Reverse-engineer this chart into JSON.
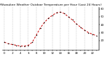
{
  "title": "Milwaukee Weather Outdoor Temperature per Hour (Last 24 Hours)",
  "hours": [
    0,
    1,
    2,
    3,
    4,
    5,
    6,
    7,
    8,
    9,
    10,
    11,
    12,
    13,
    14,
    15,
    16,
    17,
    18,
    19,
    20,
    21,
    22,
    23
  ],
  "temps": [
    18,
    16,
    15,
    14,
    13,
    13,
    14,
    18,
    27,
    36,
    43,
    48,
    52,
    55,
    56,
    54,
    50,
    46,
    41,
    37,
    33,
    30,
    28,
    26
  ],
  "line_color": "#cc0000",
  "marker_color": "#000000",
  "bg_color": "#ffffff",
  "grid_color": "#999999",
  "ylim": [
    8,
    62
  ],
  "yticks": [
    20,
    30,
    40,
    50,
    60
  ],
  "xlim": [
    -0.5,
    23.5
  ],
  "title_fontsize": 3.2,
  "tick_fontsize": 2.8,
  "linewidth": 0.7,
  "markersize": 1.5
}
